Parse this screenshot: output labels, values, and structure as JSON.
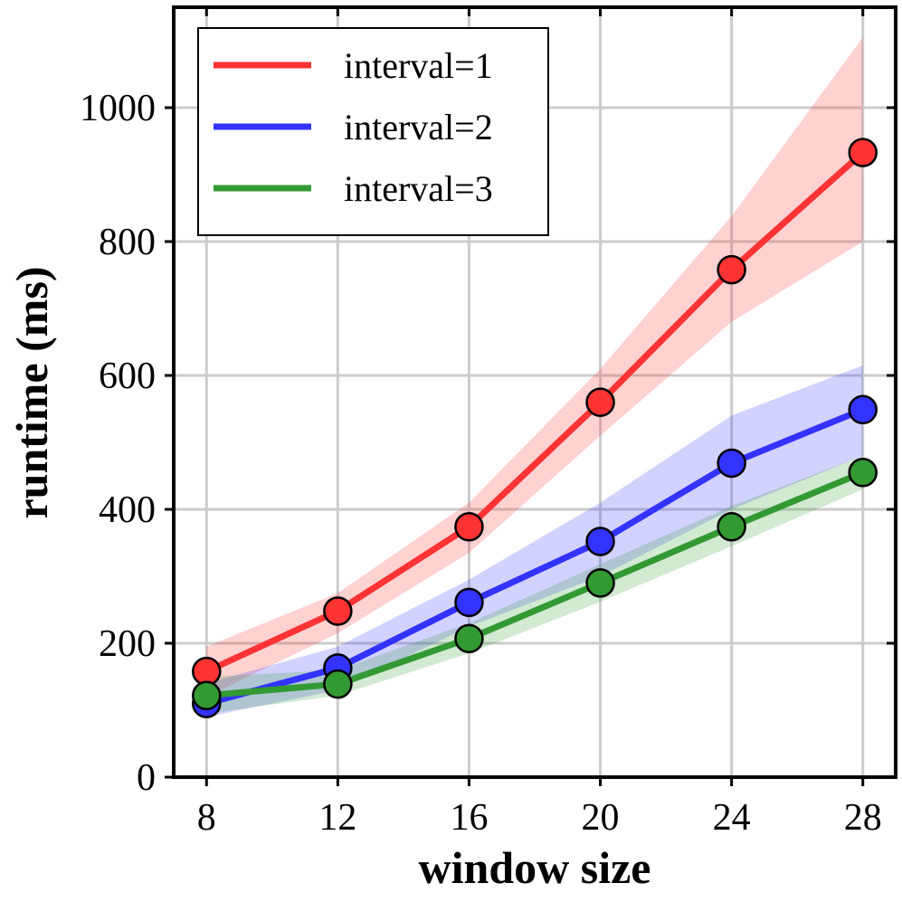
{
  "chart_data": {
    "type": "line",
    "title": "",
    "xlabel": "window size",
    "ylabel": "runtime (ms)",
    "x": [
      8,
      12,
      16,
      20,
      24,
      28
    ],
    "xlim": [
      7,
      29
    ],
    "ylim": [
      0,
      1150
    ],
    "xticks": [
      8,
      12,
      16,
      20,
      24,
      28
    ],
    "yticks": [
      0,
      200,
      400,
      600,
      800,
      1000
    ],
    "grid": true,
    "legend_position": "top-left",
    "series": [
      {
        "name": "interval=1",
        "color": "#ff3333",
        "values": [
          158,
          248,
          374,
          560,
          758,
          933
        ],
        "band_lower": [
          120,
          215,
          335,
          510,
          680,
          800
        ],
        "band_upper": [
          195,
          275,
          410,
          610,
          838,
          1105
        ]
      },
      {
        "name": "interval=2",
        "color": "#3333ff",
        "values": [
          110,
          163,
          261,
          352,
          469,
          549
        ],
        "band_lower": [
          90,
          130,
          225,
          300,
          400,
          480
        ],
        "band_upper": [
          140,
          195,
          295,
          410,
          540,
          615
        ]
      },
      {
        "name": "interval=3",
        "color": "#339933",
        "values": [
          122,
          139,
          207,
          290,
          374,
          455
        ],
        "band_lower": [
          95,
          122,
          185,
          262,
          345,
          430
        ],
        "band_upper": [
          150,
          160,
          230,
          318,
          405,
          480
        ]
      }
    ]
  }
}
